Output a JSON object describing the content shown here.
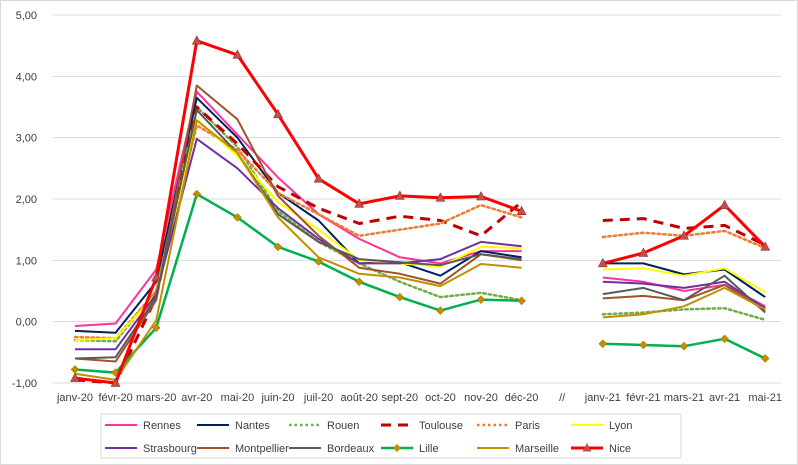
{
  "chart_data": {
    "type": "line",
    "title": "",
    "xlabel": "",
    "ylabel": "",
    "ylim": [
      -1.0,
      5.0
    ],
    "yticks": [
      "-1,00",
      "0,00",
      "1,00",
      "2,00",
      "3,00",
      "4,00",
      "5,00"
    ],
    "categories": [
      "janv-20",
      "févr-20",
      "mars-20",
      "avr-20",
      "mai-20",
      "juin-20",
      "juil-20",
      "août-20",
      "sept-20",
      "oct-20",
      "nov-20",
      "déc-20",
      "//",
      "janv-21",
      "févr-21",
      "mars-21",
      "avr-21",
      "mai-21"
    ],
    "grid": true,
    "legend_position": "bottom",
    "series": [
      {
        "name": "Rennes",
        "color": "#ff3399",
        "style": "solid",
        "width": 2,
        "marker": "none",
        "values": [
          -0.07,
          -0.03,
          0.85,
          3.75,
          3.05,
          2.35,
          1.75,
          1.35,
          1.05,
          0.95,
          1.15,
          1.15,
          null,
          0.72,
          0.65,
          0.5,
          0.6,
          0.25
        ]
      },
      {
        "name": "Nantes",
        "color": "#002060",
        "style": "solid",
        "width": 2,
        "marker": "none",
        "values": [
          -0.15,
          -0.18,
          0.65,
          3.65,
          3.0,
          2.1,
          1.65,
          0.95,
          0.97,
          0.75,
          1.15,
          1.05,
          null,
          0.95,
          0.95,
          0.77,
          0.85,
          0.4
        ]
      },
      {
        "name": "Rouen",
        "color": "#70ad47",
        "style": "dot",
        "width": 2.5,
        "marker": "none",
        "values": [
          -0.3,
          -0.32,
          0.5,
          3.5,
          2.85,
          1.8,
          1.3,
          0.95,
          0.65,
          0.4,
          0.47,
          0.35,
          null,
          0.12,
          0.15,
          0.2,
          0.22,
          0.03
        ]
      },
      {
        "name": "Toulouse",
        "color": "#c00000",
        "style": "dash",
        "width": 3,
        "marker": "none",
        "values": [
          -0.95,
          -1.0,
          0.4,
          3.5,
          2.9,
          2.2,
          1.85,
          1.6,
          1.72,
          1.65,
          1.4,
          1.95,
          null,
          1.65,
          1.68,
          1.52,
          1.57,
          1.25
        ]
      },
      {
        "name": "Paris",
        "color": "#ed7d31",
        "style": "dot",
        "width": 2.5,
        "marker": "none",
        "values": [
          -0.25,
          -0.27,
          0.5,
          3.2,
          2.8,
          2.1,
          1.75,
          1.4,
          1.5,
          1.6,
          1.9,
          1.7,
          null,
          1.38,
          1.45,
          1.4,
          1.48,
          1.2
        ]
      },
      {
        "name": "Lyon",
        "color": "#ffff00",
        "style": "solid",
        "width": 2,
        "marker": "none",
        "values": [
          -0.3,
          -0.27,
          0.45,
          3.3,
          2.7,
          1.95,
          1.5,
          1.0,
          0.95,
          0.9,
          1.22,
          1.2,
          null,
          0.85,
          0.87,
          0.75,
          0.87,
          0.48
        ]
      },
      {
        "name": "Strasbourg",
        "color": "#7030a0",
        "style": "solid",
        "width": 2,
        "marker": "none",
        "values": [
          -0.45,
          -0.45,
          0.45,
          2.98,
          2.5,
          1.85,
          1.35,
          0.95,
          0.95,
          1.02,
          1.3,
          1.23,
          null,
          0.65,
          0.62,
          0.55,
          0.65,
          0.22
        ]
      },
      {
        "name": "Montpellier",
        "color": "#a0522d",
        "style": "solid",
        "width": 2,
        "marker": "none",
        "values": [
          -0.6,
          -0.65,
          0.35,
          3.85,
          3.3,
          2.05,
          1.4,
          0.88,
          0.78,
          0.62,
          1.1,
          1.0,
          null,
          0.38,
          0.42,
          0.35,
          0.6,
          0.18
        ]
      },
      {
        "name": "Bordeaux",
        "color": "#595959",
        "style": "solid",
        "width": 2,
        "marker": "none",
        "values": [
          -0.6,
          -0.58,
          0.4,
          3.45,
          2.75,
          1.75,
          1.3,
          1.02,
          0.97,
          0.92,
          1.1,
          1.02,
          null,
          0.45,
          0.55,
          0.35,
          0.75,
          0.15
        ]
      },
      {
        "name": "Lille",
        "color": "#00b050",
        "style": "solid",
        "width": 2.5,
        "marker": "diamond",
        "values": [
          -0.78,
          -0.83,
          -0.1,
          2.08,
          1.7,
          1.22,
          0.98,
          0.65,
          0.4,
          0.18,
          0.36,
          0.34,
          null,
          -0.36,
          -0.38,
          -0.4,
          -0.28,
          -0.6
        ]
      },
      {
        "name": "Marseille",
        "color": "#bf9000",
        "style": "solid",
        "width": 2,
        "marker": "none",
        "values": [
          -0.85,
          -0.95,
          0.02,
          3.28,
          2.75,
          1.7,
          1.05,
          0.78,
          0.72,
          0.58,
          0.94,
          0.88,
          null,
          0.07,
          0.12,
          0.25,
          0.55,
          0.2
        ]
      },
      {
        "name": "Nice",
        "color": "#ff0000",
        "style": "solid",
        "width": 3,
        "marker": "triangle",
        "values": [
          -0.92,
          -1.0,
          0.72,
          4.58,
          4.35,
          3.38,
          2.33,
          1.92,
          2.05,
          2.02,
          2.04,
          1.8,
          null,
          0.95,
          1.12,
          1.4,
          1.9,
          1.22
        ]
      }
    ]
  }
}
